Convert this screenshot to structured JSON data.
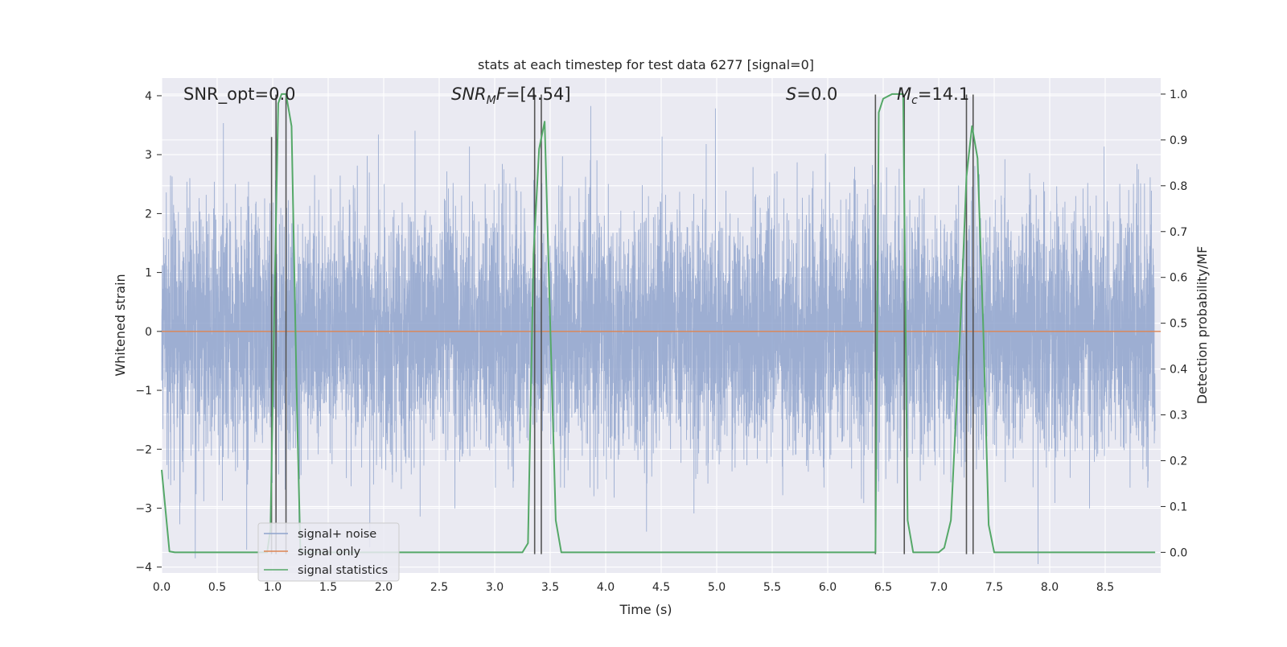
{
  "chart_data": {
    "type": "line",
    "title": "stats at each timestep for test data 6277 [signal=0]",
    "xlabel": "Time (s)",
    "ylabel_left": "Whitened strain",
    "ylabel_right": "Detection probability/MF",
    "xlim": [
      0.0,
      9.0
    ],
    "ylim_left": [
      -4.1,
      4.3
    ],
    "ylim_right": [
      -0.045,
      1.035
    ],
    "x_ticks": [
      "0.0",
      "0.5",
      "1.0",
      "1.5",
      "2.0",
      "2.5",
      "3.0",
      "3.5",
      "4.0",
      "4.5",
      "5.0",
      "5.5",
      "6.0",
      "6.5",
      "7.0",
      "7.5",
      "8.0",
      "8.5"
    ],
    "y_ticks_left": [
      "4",
      "3",
      "2",
      "1",
      "0",
      "−1",
      "−2",
      "−3",
      "−4"
    ],
    "y_ticks_right": [
      "1.0",
      "0.9",
      "0.8",
      "0.7",
      "0.6",
      "0.5",
      "0.4",
      "0.3",
      "0.2",
      "0.1",
      "0.0"
    ],
    "grid": true,
    "legend_position": "lower-left",
    "annotations": {
      "snr_opt": "SNR_opt=0.0",
      "snr_mf": "[4.54]",
      "s": "=0.0",
      "mc": "=14.1"
    },
    "colors": {
      "background": "#eaeaf2",
      "grid": "#ffffff",
      "noise": "#8fa3cd",
      "signal_only": "#dd8452",
      "statistics": "#55a868",
      "markers": "#555555"
    },
    "series": [
      {
        "name": "signal+ noise",
        "note": "whitened strain, approx. unit-variance noise, 8192 samples over 0–9 s",
        "envelope_sigma": 1.0
      },
      {
        "name": "signal only",
        "x": [
          0.0,
          9.0
        ],
        "y": [
          0.0,
          0.0
        ]
      },
      {
        "name": "signal statistics",
        "x": [
          0.0,
          0.07,
          0.12,
          0.5,
          0.95,
          0.98,
          1.02,
          1.05,
          1.08,
          1.12,
          1.17,
          1.22,
          1.25,
          1.5,
          2.0,
          3.0,
          3.25,
          3.3,
          3.35,
          3.4,
          3.45,
          3.5,
          3.55,
          3.6,
          4.0,
          5.0,
          6.0,
          6.43,
          6.46,
          6.5,
          6.58,
          6.62,
          6.68,
          6.72,
          6.77,
          6.84,
          7.0,
          7.05,
          7.11,
          7.2,
          7.25,
          7.3,
          7.35,
          7.4,
          7.45,
          7.5,
          8.0,
          8.95
        ],
        "y": [
          0.18,
          0.002,
          0.0,
          0.0,
          0.0,
          0.05,
          0.6,
          0.98,
          1.0,
          1.0,
          0.93,
          0.3,
          0.0,
          0.0,
          0.0,
          0.0,
          0.0,
          0.02,
          0.65,
          0.88,
          0.94,
          0.5,
          0.07,
          0.0,
          0.0,
          0.0,
          0.0,
          0.0,
          0.96,
          0.99,
          1.0,
          1.0,
          1.0,
          0.07,
          0.0,
          0.0,
          0.0,
          0.01,
          0.07,
          0.52,
          0.82,
          0.93,
          0.86,
          0.5,
          0.06,
          0.0,
          0.0,
          0.0
        ]
      }
    ],
    "marker_lines": [
      {
        "x": 0.99,
        "ymax": 3.3
      },
      {
        "x": 1.03,
        "ymax": 4.02
      },
      {
        "x": 1.12,
        "ymax": 4.02
      },
      {
        "x": 3.36,
        "ymax": 4.02
      },
      {
        "x": 3.42,
        "ymax": 4.02
      },
      {
        "x": 6.43,
        "ymax": 4.02
      },
      {
        "x": 6.69,
        "ymax": 4.02
      },
      {
        "x": 7.25,
        "ymax": 4.02
      },
      {
        "x": 7.31,
        "ymax": 4.02
      }
    ],
    "legend_labels": [
      "signal+ noise",
      "signal only",
      "signal statistics"
    ]
  }
}
